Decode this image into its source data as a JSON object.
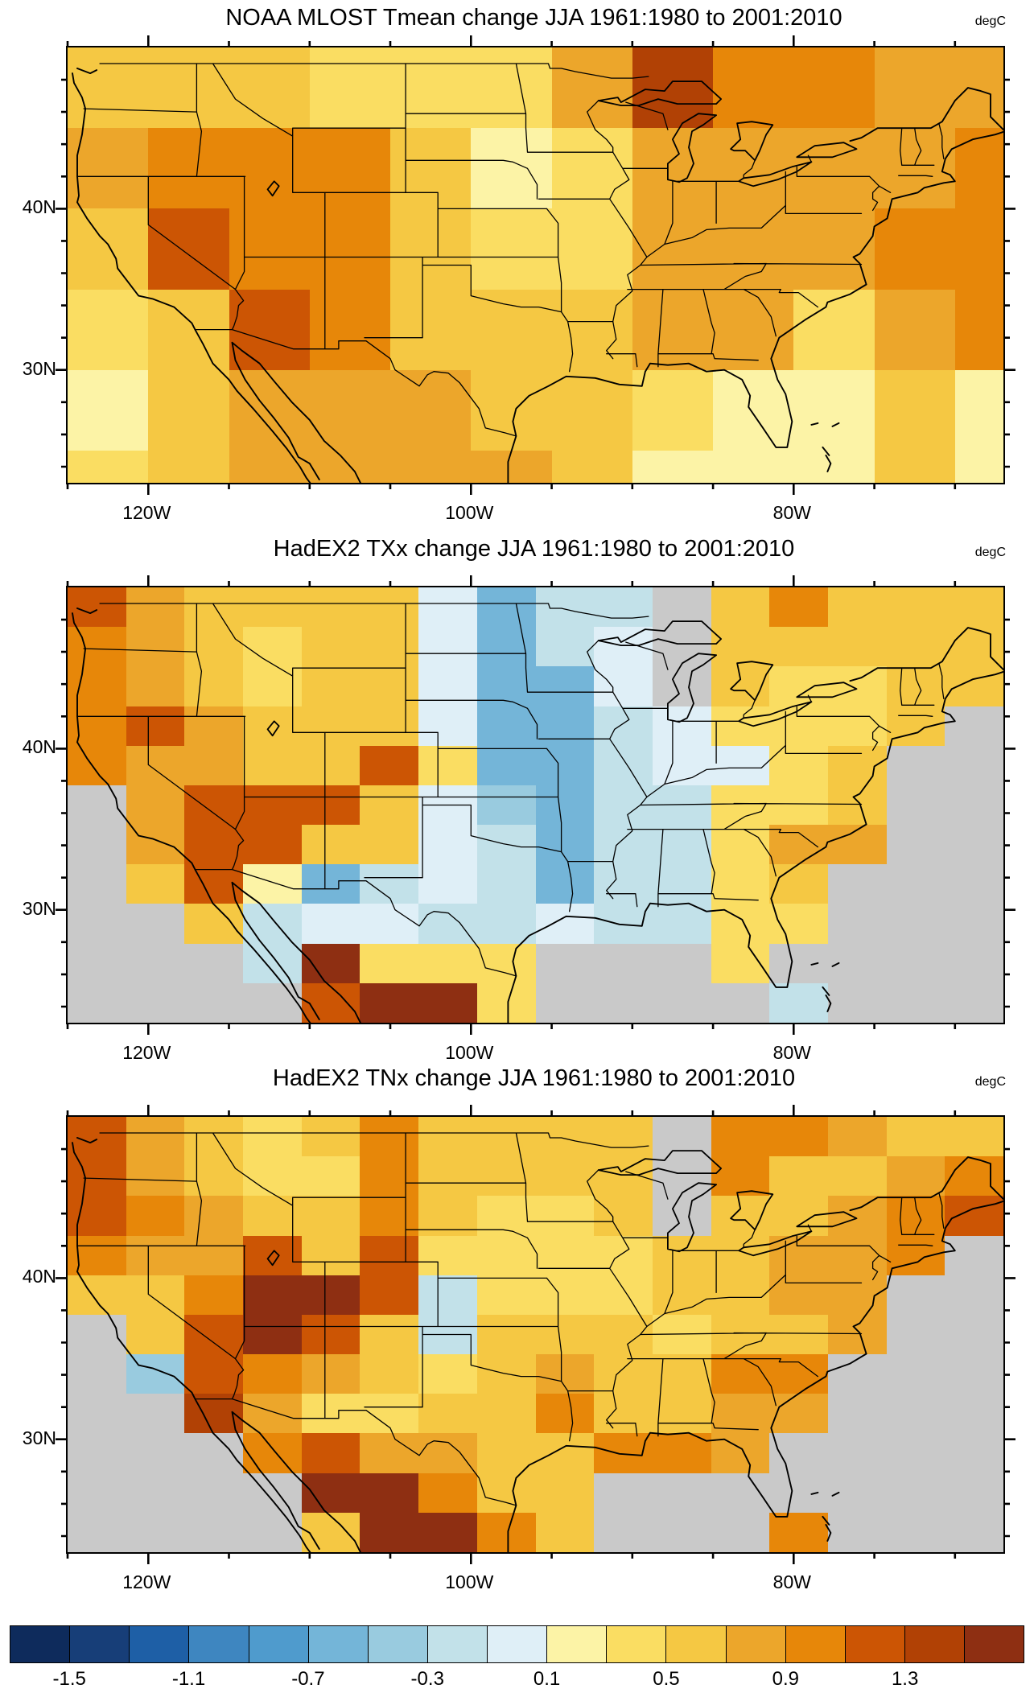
{
  "chart_data": {
    "type": "heatmap",
    "description": "Three gridded temperature-change maps over the contiguous United States with a shared discrete colorbar",
    "unit_label": "degC",
    "axes": {
      "lon_range": [
        -125,
        -67
      ],
      "lat_range": [
        23,
        50
      ],
      "x_tick_labels": [
        {
          "label": "120W",
          "lon": -120
        },
        {
          "label": "100W",
          "lon": -100
        },
        {
          "label": "80W",
          "lon": -80
        }
      ],
      "y_tick_labels": [
        {
          "label": "40N",
          "lat": 40
        },
        {
          "label": "30N",
          "lat": 30
        }
      ],
      "x_minor_tick_step_deg": 5,
      "y_minor_tick_step_deg": 2,
      "grid": "off"
    },
    "colorbar": {
      "bin_edges": [
        -1.5,
        -1.3,
        -1.1,
        -0.9,
        -0.7,
        -0.5,
        -0.3,
        -0.1,
        0.1,
        0.3,
        0.5,
        0.7,
        0.9,
        1.1,
        1.3,
        1.5
      ],
      "tick_labels": [
        "-1.5",
        "-1.1",
        "-0.7",
        "-0.3",
        "0.1",
        "0.5",
        "0.9",
        "1.3"
      ],
      "labeled_boundary_indices": [
        1,
        3,
        5,
        7,
        9,
        11,
        13,
        15
      ],
      "palette": [
        "#0e2b5c",
        "#173e78",
        "#1e5fa6",
        "#3e86c0",
        "#4f9bcd",
        "#74b5d8",
        "#99cbdf",
        "#c2e1e9",
        "#dfeff7",
        "#fcf3a6",
        "#fadd62",
        "#f5c843",
        "#eca62b",
        "#e78709",
        "#cc5504",
        "#b14105",
        "#8e2f12"
      ],
      "missing_color": "#c9c9c9",
      "outline_color": "#000000",
      "position": "bottom"
    },
    "panels": [
      {
        "title": "NOAA MLOST Tmean change JJA 1961:1980 to 2001:2010",
        "unit": "degC",
        "grid": {
          "lon_edges": [
            -125,
            -120,
            -115,
            -110,
            -105,
            -100,
            -95,
            -90,
            -85,
            -80,
            -75,
            -70,
            -67
          ],
          "lat_edges": [
            50,
            45,
            40,
            35,
            30,
            25,
            23
          ],
          "cells": [
            [
              12,
              12,
              12,
              11,
              11,
              11,
              13,
              16,
              14,
              14,
              13,
              13
            ],
            [
              13,
              14,
              14,
              14,
              12,
              10,
              11,
              13,
              13,
              13,
              13,
              14
            ],
            [
              12,
              15,
              14,
              14,
              12,
              11,
              11,
              13,
              13,
              13,
              14,
              14
            ],
            [
              11,
              12,
              15,
              14,
              12,
              12,
              12,
              13,
              13,
              11,
              13,
              14
            ],
            [
              10,
              12,
              13,
              13,
              13,
              12,
              12,
              11,
              10,
              10,
              12,
              10
            ],
            [
              11,
              12,
              13,
              13,
              13,
              13,
              12,
              10,
              10,
              10,
              12,
              10
            ]
          ]
        }
      },
      {
        "title": "HadEX2 TXx change JJA 1961:1980 to 2001:2010",
        "unit": "degC",
        "grid": {
          "lon_edges": [
            -125,
            -121.375,
            -117.75,
            -114.125,
            -110.5,
            -106.875,
            -103.25,
            -99.625,
            -96,
            -92.375,
            -88.75,
            -85.125,
            -81.5,
            -77.875,
            -74.25,
            -70.625,
            -67
          ],
          "lat_edges": [
            50,
            47.545,
            45.091,
            42.636,
            40.182,
            37.727,
            35.273,
            32.818,
            30.364,
            27.909,
            25.455,
            23
          ],
          "cells": [
            [
              15,
              13,
              12,
              12,
              12,
              12,
              9,
              6,
              8,
              8,
              0,
              12,
              14,
              12,
              12,
              12
            ],
            [
              14,
              13,
              12,
              11,
              12,
              12,
              9,
              6,
              8,
              9,
              0,
              12,
              12,
              12,
              12,
              12
            ],
            [
              14,
              13,
              12,
              11,
              12,
              12,
              9,
              6,
              6,
              9,
              0,
              12,
              11,
              11,
              12,
              12
            ],
            [
              14,
              15,
              13,
              12,
              12,
              12,
              9,
              6,
              6,
              8,
              9,
              11,
              11,
              11,
              12,
              0
            ],
            [
              14,
              13,
              13,
              12,
              12,
              15,
              11,
              6,
              6,
              8,
              9,
              9,
              11,
              12,
              0,
              0
            ],
            [
              0,
              13,
              15,
              15,
              15,
              12,
              9,
              7,
              6,
              8,
              8,
              11,
              11,
              12,
              0,
              0
            ],
            [
              0,
              13,
              15,
              15,
              12,
              12,
              9,
              8,
              6,
              8,
              8,
              11,
              13,
              13,
              0,
              0
            ],
            [
              0,
              12,
              15,
              10,
              6,
              8,
              9,
              8,
              6,
              8,
              8,
              11,
              12,
              0,
              0,
              0
            ],
            [
              0,
              0,
              12,
              8,
              9,
              9,
              8,
              8,
              9,
              8,
              8,
              11,
              11,
              0,
              0,
              0
            ],
            [
              0,
              0,
              0,
              8,
              17,
              11,
              11,
              11,
              0,
              0,
              0,
              11,
              0,
              0,
              0,
              0
            ],
            [
              0,
              0,
              0,
              0,
              15,
              17,
              17,
              11,
              0,
              0,
              0,
              0,
              8,
              0,
              0,
              0
            ]
          ]
        }
      },
      {
        "title": "HadEX2 TNx change JJA 1961:1980 to 2001:2010",
        "unit": "degC",
        "grid": {
          "lon_edges": [
            -125,
            -121.375,
            -117.75,
            -114.125,
            -110.5,
            -106.875,
            -103.25,
            -99.625,
            -96,
            -92.375,
            -88.75,
            -85.125,
            -81.5,
            -77.875,
            -74.25,
            -70.625,
            -67
          ],
          "lat_edges": [
            50,
            47.545,
            45.091,
            42.636,
            40.182,
            37.727,
            35.273,
            32.818,
            30.364,
            27.909,
            25.455,
            23
          ],
          "cells": [
            [
              15,
              13,
              12,
              11,
              12,
              14,
              12,
              12,
              12,
              12,
              0,
              14,
              14,
              13,
              12,
              12
            ],
            [
              15,
              13,
              12,
              11,
              11,
              14,
              12,
              12,
              12,
              12,
              0,
              14,
              12,
              12,
              13,
              14
            ],
            [
              15,
              14,
              13,
              12,
              12,
              14,
              12,
              11,
              11,
              12,
              0,
              12,
              12,
              13,
              14,
              15
            ],
            [
              14,
              13,
              13,
              15,
              12,
              15,
              11,
              11,
              11,
              11,
              12,
              12,
              13,
              13,
              14,
              0
            ],
            [
              12,
              12,
              14,
              17,
              17,
              15,
              8,
              11,
              11,
              11,
              12,
              12,
              13,
              13,
              0,
              0
            ],
            [
              0,
              12,
              15,
              17,
              15,
              12,
              8,
              12,
              12,
              12,
              11,
              12,
              12,
              13,
              0,
              0
            ],
            [
              0,
              7,
              15,
              14,
              13,
              12,
              11,
              12,
              13,
              12,
              12,
              14,
              14,
              0,
              0,
              0
            ],
            [
              0,
              0,
              16,
              13,
              11,
              11,
              12,
              12,
              14,
              12,
              12,
              13,
              13,
              0,
              0,
              0
            ],
            [
              0,
              0,
              0,
              14,
              15,
              13,
              13,
              12,
              12,
              14,
              14,
              13,
              0,
              0,
              0,
              0
            ],
            [
              0,
              0,
              0,
              0,
              17,
              17,
              14,
              12,
              12,
              0,
              0,
              0,
              0,
              0,
              0,
              0
            ],
            [
              0,
              0,
              0,
              0,
              12,
              17,
              17,
              14,
              12,
              0,
              0,
              0,
              14,
              0,
              0,
              0
            ]
          ]
        }
      }
    ]
  }
}
